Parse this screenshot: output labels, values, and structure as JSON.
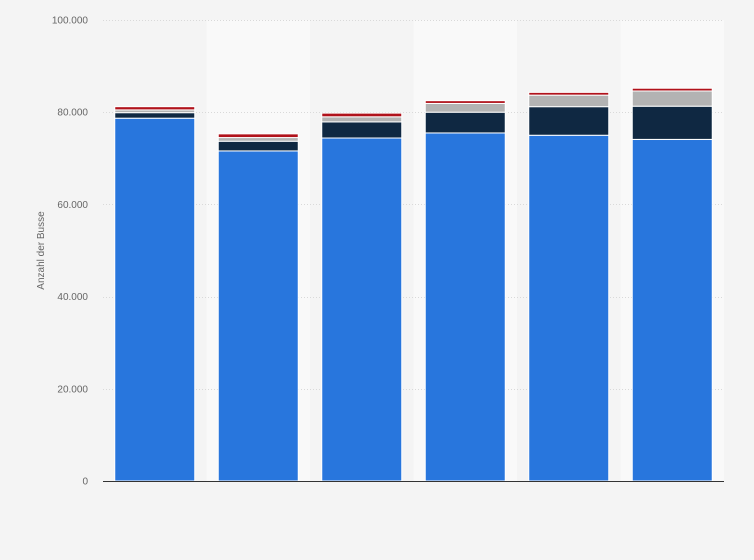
{
  "chart_data": {
    "type": "bar",
    "stacked": true,
    "title": "",
    "xlabel": "",
    "ylabel": "Anzahl der Busse",
    "ylim": [
      0,
      100000
    ],
    "yticks": [
      0,
      20000,
      40000,
      60000,
      80000,
      100000
    ],
    "ytick_labels": [
      "0",
      "20.000",
      "40.000",
      "60.000",
      "80.000",
      "100.000"
    ],
    "categories": [
      "",
      "",
      "",
      "",
      "",
      ""
    ],
    "grid": true,
    "series": [
      {
        "values": [
          78700,
          71600,
          74400,
          75500,
          75000,
          74100
        ],
        "color": "#2876dd"
      },
      {
        "values": [
          1200,
          2100,
          3500,
          4500,
          6200,
          7200
        ],
        "color": "#0f2842"
      },
      {
        "values": [
          600,
          800,
          1100,
          1900,
          2500,
          3300
        ],
        "color": "#b3b3b3"
      },
      {
        "values": [
          700,
          800,
          800,
          600,
          600,
          600
        ],
        "color": "#b0121b"
      }
    ]
  }
}
